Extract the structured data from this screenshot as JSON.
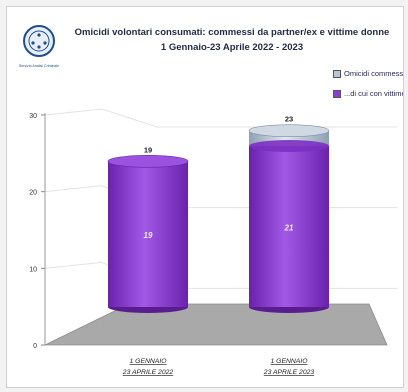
{
  "header": {
    "logo_caption": "Servizio Analisi Criminale",
    "title_line1": "Omicidi volontari consumati: commessi da partner/ex e vittime donne",
    "title_line2": "1 Gennaio-23 Aprile 2022 - 2023"
  },
  "colors": {
    "commessi": "#b9c5d3",
    "vittime_donne": "#8a3fd1",
    "floor": "#a9a9a9"
  },
  "chart_data": {
    "type": "bar",
    "style": "3d-cylinder",
    "categories": [
      "1 GENNAIO 23 APRILE 2022",
      "1 GENNAIO 23 APRILE 2023"
    ],
    "category_lines": [
      [
        "1 GENNAIO",
        "23 APRILE 2022"
      ],
      [
        "1 GENNAIO",
        "23 APRILE 2023"
      ]
    ],
    "series": [
      {
        "name": "Omicidi commessi",
        "values": [
          19,
          23
        ]
      },
      {
        "name": "...di cui con vittime donne",
        "values": [
          19,
          21
        ]
      }
    ],
    "ylim": [
      0,
      30
    ],
    "yticks": [
      0,
      10,
      20,
      30
    ],
    "legend_position": "top-right",
    "grid": true
  }
}
